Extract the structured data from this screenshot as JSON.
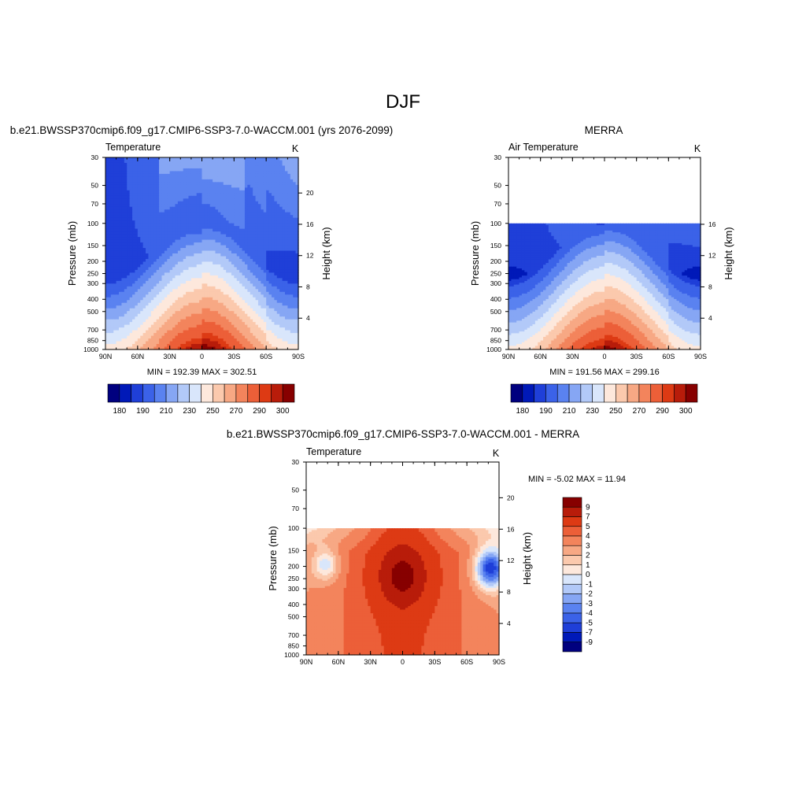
{
  "figure": {
    "title": "DJF",
    "colors": {
      "abs_levels": [
        "#00007f",
        "#0019b8",
        "#1f3fd8",
        "#3b62e8",
        "#5a82f0",
        "#86a6f4",
        "#b2c9f8",
        "#d9e6fb",
        "#fde8dc",
        "#fbc9ad",
        "#f7a884",
        "#f3845c",
        "#ec5f38",
        "#dd3a14",
        "#b81c0a",
        "#870000"
      ],
      "diff_levels": [
        "#00007f",
        "#0019b8",
        "#1f3fd8",
        "#3b62e8",
        "#5a82f0",
        "#86a6f4",
        "#b2c9f8",
        "#d9e6fb",
        "#fde8dc",
        "#fbc9ad",
        "#f7a884",
        "#f3845c",
        "#ec5f38",
        "#dd3a14",
        "#b81c0a",
        "#870000"
      ]
    }
  },
  "chart_data": [
    {
      "type": "heatmap",
      "title": "b.e21.BWSSP370cmip6.f09_g17.CMIP6-SSP3-7.0-WACCM.001 (yrs 2076-2099)",
      "left_label": "Temperature",
      "units": "K",
      "ylabel": "Pressure (mb)",
      "ylabel_right": "Height (km)",
      "x_ticks": [
        "90N",
        "60N",
        "30N",
        "0",
        "30S",
        "60S",
        "90S"
      ],
      "x": [
        90,
        60,
        30,
        0,
        -30,
        -60,
        -90
      ],
      "y_ticks": [
        "30",
        "50",
        "70",
        "100",
        "150",
        "200",
        "250",
        "300",
        "400",
        "500",
        "700",
        "850",
        "1000"
      ],
      "y_pressure": [
        30,
        50,
        70,
        100,
        150,
        200,
        250,
        300,
        400,
        500,
        700,
        850,
        1000
      ],
      "height_ticks": [
        "4",
        "8",
        "12",
        "16",
        "20"
      ],
      "height_km": [
        4,
        8,
        12,
        16,
        20
      ],
      "ylim": [
        1000,
        30
      ],
      "data_top_mb": 30,
      "min_max_text": "MIN = 192.39  MAX = 302.51",
      "min": 192.39,
      "max": 302.51,
      "colorbar_labels": [
        "180",
        "190",
        "210",
        "230",
        "250",
        "270",
        "290",
        "300"
      ],
      "colorbar_levels": [
        180,
        185,
        190,
        200,
        210,
        220,
        230,
        240,
        250,
        260,
        270,
        280,
        290,
        295,
        300
      ]
    },
    {
      "type": "heatmap",
      "title": "MERRA",
      "left_label": "Air Temperature",
      "units": "K",
      "ylabel": "Pressure (mb)",
      "ylabel_right": "Height (km)",
      "x_ticks": [
        "90N",
        "60N",
        "30N",
        "0",
        "30S",
        "60S",
        "90S"
      ],
      "x": [
        90,
        60,
        30,
        0,
        -30,
        -60,
        -90
      ],
      "y_ticks": [
        "30",
        "50",
        "70",
        "100",
        "150",
        "200",
        "250",
        "300",
        "400",
        "500",
        "700",
        "850",
        "1000"
      ],
      "y_pressure": [
        30,
        50,
        70,
        100,
        150,
        200,
        250,
        300,
        400,
        500,
        700,
        850,
        1000
      ],
      "height_ticks": [
        "4",
        "8",
        "12",
        "16"
      ],
      "height_km": [
        4,
        8,
        12,
        16
      ],
      "ylim": [
        1000,
        30
      ],
      "data_top_mb": 100,
      "min_max_text": "MIN = 191.56  MAX = 299.16",
      "min": 191.56,
      "max": 299.16,
      "colorbar_labels": [
        "180",
        "190",
        "210",
        "230",
        "250",
        "270",
        "290",
        "300"
      ],
      "colorbar_levels": [
        180,
        185,
        190,
        200,
        210,
        220,
        230,
        240,
        250,
        260,
        270,
        280,
        290,
        295,
        300
      ]
    },
    {
      "type": "heatmap",
      "title": "b.e21.BWSSP370cmip6.f09_g17.CMIP6-SSP3-7.0-WACCM.001 - MERRA",
      "left_label": "Temperature",
      "units": "K",
      "ylabel": "Pressure (mb)",
      "ylabel_right": "Height (km)",
      "x_ticks": [
        "90N",
        "60N",
        "30N",
        "0",
        "30S",
        "60S",
        "90S"
      ],
      "x": [
        90,
        60,
        30,
        0,
        -30,
        -60,
        -90
      ],
      "y_ticks": [
        "30",
        "50",
        "70",
        "100",
        "150",
        "200",
        "250",
        "300",
        "400",
        "500",
        "700",
        "850",
        "1000"
      ],
      "y_pressure": [
        30,
        50,
        70,
        100,
        150,
        200,
        250,
        300,
        400,
        500,
        700,
        850,
        1000
      ],
      "height_ticks": [
        "4",
        "8",
        "12",
        "16",
        "20"
      ],
      "height_km": [
        4,
        8,
        12,
        16,
        20
      ],
      "ylim": [
        1000,
        30
      ],
      "data_top_mb": 100,
      "min_max_text": "MIN =  -5.02  MAX =  11.94",
      "min": -5.02,
      "max": 11.94,
      "colorbar_labels": [
        "9",
        "7",
        "5",
        "4",
        "3",
        "2",
        "1",
        "0",
        "-1",
        "-2",
        "-3",
        "-4",
        "-5",
        "-7",
        "-9"
      ],
      "colorbar_levels": [
        9,
        7,
        5,
        4,
        3,
        2,
        1,
        0,
        -1,
        -2,
        -3,
        -4,
        -5,
        -7,
        -9
      ]
    }
  ]
}
